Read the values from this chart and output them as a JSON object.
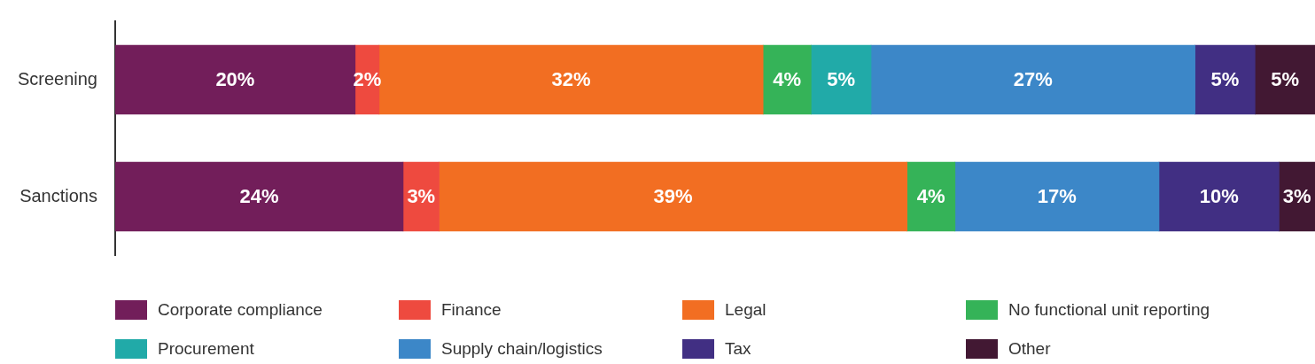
{
  "chart_data": {
    "type": "bar",
    "orientation": "horizontal",
    "stacked": true,
    "categories": [
      "Screening",
      "Sanctions"
    ],
    "xlim": [
      0,
      100
    ],
    "tick_labels": "y",
    "legend": "bottom",
    "series": [
      {
        "name": "Corporate compliance",
        "color": "#721e5a",
        "values": [
          20,
          24
        ],
        "value_labels": [
          "20%",
          "24%"
        ]
      },
      {
        "name": "Finance",
        "color": "#ee4a3f",
        "values": [
          2,
          3
        ],
        "value_labels": [
          "2%",
          "3%"
        ]
      },
      {
        "name": "Legal",
        "color": "#f26e22",
        "values": [
          32,
          39
        ],
        "value_labels": [
          "32%",
          "39%"
        ]
      },
      {
        "name": "No functional unit reporting",
        "color": "#35b358",
        "values": [
          4,
          4
        ],
        "value_labels": [
          "4%",
          "4%"
        ]
      },
      {
        "name": "Procurement",
        "color": "#21aaa8",
        "values": [
          5,
          null
        ],
        "value_labels": [
          "5%",
          null
        ]
      },
      {
        "name": "Supply chain/logistics",
        "color": "#3c87c8",
        "values": [
          27,
          17
        ],
        "value_labels": [
          "27%",
          "17%"
        ]
      },
      {
        "name": "Tax",
        "color": "#412f83",
        "values": [
          5,
          10
        ],
        "value_labels": [
          "5%",
          "10%"
        ]
      },
      {
        "name": "Other",
        "color": "#421833",
        "values": [
          5,
          3
        ],
        "value_labels": [
          "5%",
          "3%"
        ]
      }
    ]
  }
}
